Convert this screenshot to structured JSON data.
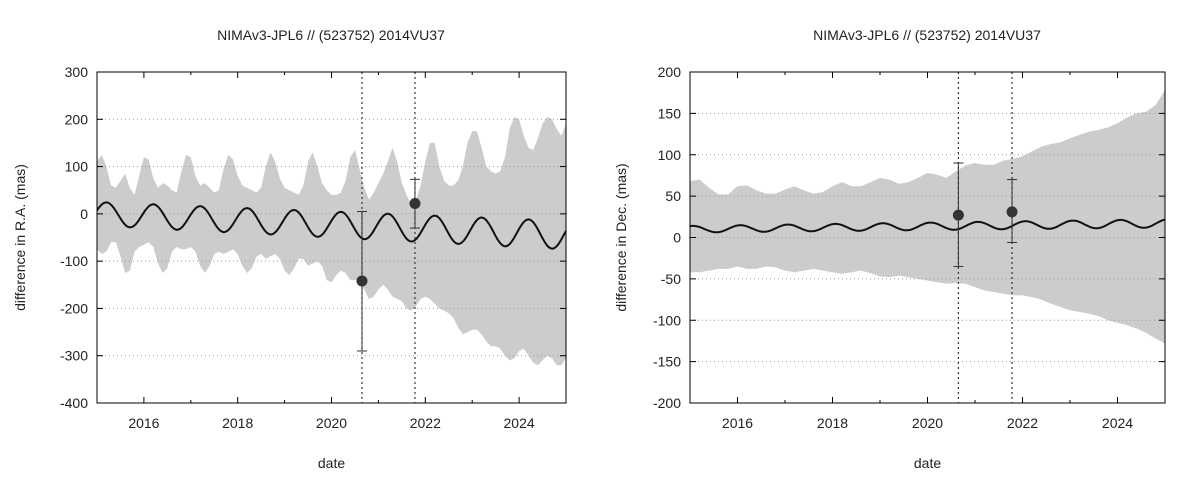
{
  "chart_data": [
    {
      "type": "line",
      "title": "NIMAv3-JPL6 // (523752) 2014VU37",
      "xlabel": "date",
      "ylabel": "difference in R.A. (mas)",
      "xlim": [
        2015.0,
        2025.0
      ],
      "ylim": [
        -400,
        300
      ],
      "xticks": [
        2016,
        2018,
        2020,
        2022,
        2024
      ],
      "yticks": [
        -400,
        -300,
        -200,
        -100,
        0,
        100,
        200,
        300
      ],
      "grid": "horizontal dotted",
      "vlines": [
        2020.65,
        2021.78
      ],
      "series": [
        {
          "kind": "band",
          "color": "#cccccc",
          "x": [
            2015.0,
            2015.1,
            2015.2,
            2015.3,
            2015.4,
            2015.5,
            2015.6,
            2015.7,
            2015.8,
            2015.9,
            2016.0,
            2016.1,
            2016.2,
            2016.3,
            2016.4,
            2016.5,
            2016.6,
            2016.7,
            2016.8,
            2016.9,
            2017.0,
            2017.1,
            2017.2,
            2017.3,
            2017.4,
            2017.5,
            2017.6,
            2017.7,
            2017.8,
            2017.9,
            2018.0,
            2018.1,
            2018.2,
            2018.3,
            2018.4,
            2018.5,
            2018.6,
            2018.7,
            2018.8,
            2018.9,
            2019.0,
            2019.1,
            2019.2,
            2019.3,
            2019.4,
            2019.5,
            2019.6,
            2019.7,
            2019.8,
            2019.9,
            2020.0,
            2020.1,
            2020.2,
            2020.3,
            2020.4,
            2020.5,
            2020.6,
            2020.7,
            2020.8,
            2020.9,
            2021.0,
            2021.1,
            2021.2,
            2021.3,
            2021.4,
            2021.5,
            2021.6,
            2021.7,
            2021.8,
            2021.9,
            2022.0,
            2022.1,
            2022.2,
            2022.3,
            2022.4,
            2022.5,
            2022.6,
            2022.7,
            2022.8,
            2022.9,
            2023.0,
            2023.1,
            2023.2,
            2023.3,
            2023.4,
            2023.5,
            2023.6,
            2023.7,
            2023.8,
            2023.9,
            2024.0,
            2024.1,
            2024.2,
            2024.3,
            2024.4,
            2024.5,
            2024.6,
            2024.7,
            2024.8,
            2024.9,
            2025.0
          ],
          "upper": [
            110,
            125,
            100,
            60,
            55,
            70,
            85,
            55,
            40,
            80,
            120,
            115,
            75,
            55,
            65,
            60,
            50,
            45,
            90,
            125,
            120,
            80,
            60,
            65,
            55,
            45,
            50,
            95,
            125,
            115,
            80,
            60,
            55,
            50,
            45,
            55,
            100,
            130,
            110,
            75,
            55,
            50,
            45,
            40,
            60,
            110,
            130,
            100,
            65,
            50,
            40,
            40,
            45,
            70,
            120,
            135,
            95,
            55,
            30,
            45,
            65,
            85,
            110,
            140,
            110,
            65,
            40,
            20,
            30,
            60,
            110,
            150,
            150,
            100,
            70,
            60,
            60,
            70,
            100,
            150,
            175,
            175,
            140,
            100,
            90,
            85,
            90,
            120,
            180,
            205,
            200,
            165,
            140,
            135,
            160,
            190,
            205,
            200,
            180,
            165,
            190
          ],
          "lower": [
            -75,
            -85,
            -80,
            -60,
            -60,
            -90,
            -125,
            -120,
            -80,
            -70,
            -65,
            -60,
            -70,
            -105,
            -125,
            -115,
            -80,
            -70,
            -75,
            -75,
            -70,
            -80,
            -110,
            -125,
            -110,
            -85,
            -80,
            -85,
            -80,
            -75,
            -85,
            -110,
            -125,
            -115,
            -90,
            -85,
            -95,
            -90,
            -85,
            -95,
            -120,
            -130,
            -115,
            -95,
            -95,
            -110,
            -105,
            -100,
            -110,
            -140,
            -145,
            -130,
            -120,
            -125,
            -140,
            -140,
            -140,
            -160,
            -180,
            -175,
            -160,
            -150,
            -160,
            -175,
            -180,
            -185,
            -200,
            -205,
            -195,
            -180,
            -175,
            -180,
            -190,
            -200,
            -205,
            -210,
            -220,
            -240,
            -255,
            -250,
            -245,
            -245,
            -255,
            -270,
            -280,
            -280,
            -285,
            -300,
            -310,
            -305,
            -290,
            -285,
            -300,
            -315,
            -320,
            -310,
            -300,
            -305,
            -320,
            -320,
            -305
          ]
        },
        {
          "kind": "line",
          "color": "#111111",
          "formula": "mean + amplitude*sin(2*pi*(t-2015) + phase)",
          "mean_start": 0,
          "mean_end": -45,
          "amp_start": 25,
          "amp_end": 30,
          "phase": 0.3
        },
        {
          "kind": "points",
          "color": "#333333",
          "points": [
            {
              "x": 2020.65,
              "y": -142,
              "err_low": -290,
              "err_high": 5
            },
            {
              "x": 2021.78,
              "y": 22,
              "err_low": -30,
              "err_high": 73
            }
          ]
        }
      ]
    },
    {
      "type": "line",
      "title": "NIMAv3-JPL6 // (523752) 2014VU37",
      "xlabel": "date",
      "ylabel": "difference in Dec. (mas)",
      "xlim": [
        2015.0,
        2025.0
      ],
      "ylim": [
        -200,
        200
      ],
      "xticks": [
        2016,
        2018,
        2020,
        2022,
        2024
      ],
      "yticks": [
        -200,
        -150,
        -100,
        -50,
        0,
        50,
        100,
        150,
        200
      ],
      "grid": "horizontal dotted",
      "vlines": [
        2020.65,
        2021.78
      ],
      "series": [
        {
          "kind": "band",
          "color": "#cccccc",
          "x": [
            2015.0,
            2015.2,
            2015.4,
            2015.6,
            2015.8,
            2016.0,
            2016.2,
            2016.4,
            2016.6,
            2016.8,
            2017.0,
            2017.2,
            2017.4,
            2017.6,
            2017.8,
            2018.0,
            2018.2,
            2018.4,
            2018.6,
            2018.8,
            2019.0,
            2019.2,
            2019.4,
            2019.6,
            2019.8,
            2020.0,
            2020.2,
            2020.4,
            2020.6,
            2020.8,
            2021.0,
            2021.2,
            2021.4,
            2021.6,
            2021.8,
            2022.0,
            2022.2,
            2022.4,
            2022.6,
            2022.8,
            2023.0,
            2023.2,
            2023.4,
            2023.6,
            2023.8,
            2024.0,
            2024.2,
            2024.4,
            2024.6,
            2024.8,
            2025.0
          ],
          "upper": [
            68,
            70,
            60,
            52,
            52,
            62,
            63,
            57,
            53,
            53,
            58,
            62,
            57,
            53,
            55,
            62,
            67,
            62,
            62,
            67,
            72,
            70,
            65,
            67,
            72,
            78,
            76,
            72,
            80,
            87,
            90,
            88,
            88,
            93,
            95,
            98,
            104,
            110,
            113,
            115,
            120,
            124,
            128,
            130,
            133,
            138,
            145,
            150,
            152,
            160,
            178
          ],
          "lower": [
            -42,
            -42,
            -40,
            -38,
            -38,
            -35,
            -38,
            -38,
            -35,
            -36,
            -40,
            -42,
            -40,
            -38,
            -40,
            -42,
            -44,
            -42,
            -40,
            -43,
            -47,
            -48,
            -46,
            -48,
            -50,
            -52,
            -54,
            -56,
            -55,
            -56,
            -60,
            -64,
            -66,
            -68,
            -70,
            -70,
            -72,
            -75,
            -80,
            -84,
            -88,
            -90,
            -92,
            -95,
            -100,
            -103,
            -106,
            -110,
            -115,
            -122,
            -128
          ]
        },
        {
          "kind": "line",
          "color": "#111111",
          "formula": "mean + amplitude*sin(2*pi*(t-2015) + phase)",
          "mean_start": 10,
          "mean_end": 17,
          "amp_start": 4,
          "amp_end": 5,
          "phase": 1.2
        },
        {
          "kind": "points",
          "color": "#333333",
          "points": [
            {
              "x": 2020.65,
              "y": 27,
              "err_low": -35,
              "err_high": 90
            },
            {
              "x": 2021.78,
              "y": 31,
              "err_low": -6,
              "err_high": 70
            }
          ]
        }
      ]
    }
  ]
}
